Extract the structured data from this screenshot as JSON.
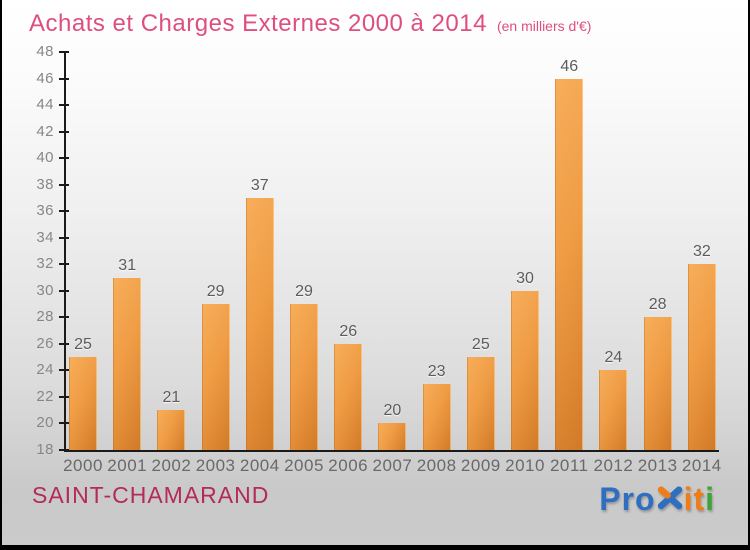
{
  "header": {
    "title": "Achats et Charges Externes 2000 à 2014",
    "subtitle": "(en milliers d'€)"
  },
  "footer": {
    "location": "SAINT-CHAMARAND",
    "logo": {
      "text": "Proxiti",
      "letters": [
        {
          "ch": "P",
          "color": "#2f6fc1"
        },
        {
          "ch": "r",
          "color": "#2f6fc1"
        },
        {
          "ch": "o",
          "color": "#2f6fc1"
        },
        {
          "ch": "x",
          "color": "#2f6fc1",
          "icon": true,
          "arm_color": "#ef7d17"
        },
        {
          "ch": "i",
          "color": "#ef7d17"
        },
        {
          "ch": "t",
          "color": "#ef7d17"
        },
        {
          "ch": "i",
          "color": "#3ea435"
        }
      ]
    }
  },
  "colors": {
    "title_pink": "#de4f7d",
    "location_crimson": "#b42a58",
    "bar_light": "#f8ae5a",
    "bar_dark": "#d07a28",
    "axis": "#1a1a1a",
    "tick_label_gray": "#878787",
    "year_label_gray": "#696969",
    "value_label_gray": "#5c5c5c"
  },
  "chart_data": {
    "type": "bar",
    "title": "Achats et Charges Externes 2000 à 2014",
    "subtitle": "(en milliers d'€)",
    "categories": [
      "2000",
      "2001",
      "2002",
      "2003",
      "2004",
      "2005",
      "2006",
      "2007",
      "2008",
      "2009",
      "2010",
      "2011",
      "2012",
      "2013",
      "2014"
    ],
    "values": [
      25,
      31,
      21,
      29,
      37,
      29,
      26,
      20,
      23,
      25,
      30,
      46,
      24,
      28,
      32
    ],
    "xlabel": "",
    "ylabel": "",
    "ylim": [
      18,
      48
    ],
    "ytick_step": 2,
    "grid": false,
    "legend": false,
    "value_labels": true
  }
}
